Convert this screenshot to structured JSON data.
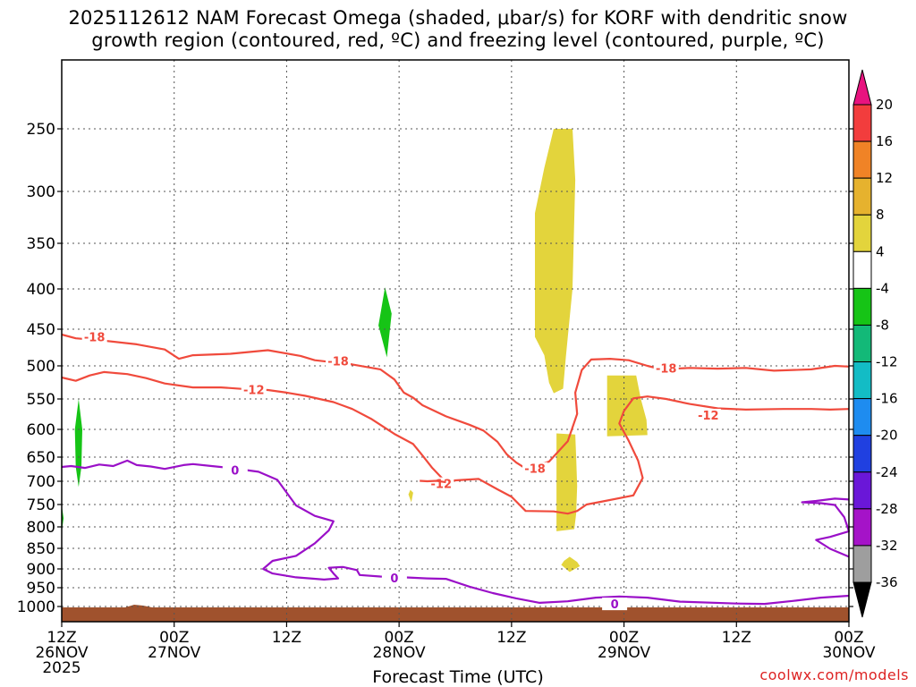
{
  "title_line1": "2025112612 NAM Forecast Omega (shaded, μbar/s) for KORF with dendritic snow",
  "title_line2": "growth region (contoured, red, ºC) and freezing level (contoured, purple, ºC)",
  "credit": "coolwx.com/models",
  "chart_data": {
    "type": "time-height cross section",
    "title": "2025112612 NAM Forecast Omega (shaded, μbar/s) for KORF with dendritic snow growth region (contoured, red, ºC) and freezing level (contoured, purple, ºC)",
    "xlabel": "Forecast Time (UTC)",
    "ylabel": "",
    "x_range_hours": [
      0,
      84
    ],
    "x_ticks": [
      {
        "hour": 0,
        "line1": "12Z",
        "line2": "26NOV",
        "line3": "2025"
      },
      {
        "hour": 12,
        "line1": "00Z",
        "line2": "27NOV",
        "line3": ""
      },
      {
        "hour": 24,
        "line1": "12Z",
        "line2": "",
        "line3": ""
      },
      {
        "hour": 36,
        "line1": "00Z",
        "line2": "28NOV",
        "line3": ""
      },
      {
        "hour": 48,
        "line1": "12Z",
        "line2": "",
        "line3": ""
      },
      {
        "hour": 60,
        "line1": "00Z",
        "line2": "29NOV",
        "line3": ""
      },
      {
        "hour": 72,
        "line1": "12Z",
        "line2": "",
        "line3": ""
      },
      {
        "hour": 84,
        "line1": "00Z",
        "line2": "30NOV",
        "line3": ""
      }
    ],
    "y_range_hpa": [
      200,
      1015
    ],
    "y_ticks": [
      250,
      300,
      350,
      400,
      450,
      500,
      550,
      600,
      650,
      700,
      750,
      800,
      850,
      900,
      950,
      1000
    ],
    "grid": true,
    "colorbar": {
      "units": "μbar/s",
      "labels": [
        "20",
        "16",
        "12",
        "8",
        "4",
        "-4",
        "-8",
        "-12",
        "-16",
        "-20",
        "-24",
        "-28",
        "-32",
        "-36"
      ],
      "colors": [
        "#e8137f",
        "#f23d3d",
        "#f08326",
        "#e6b22e",
        "#e3d43c",
        "#ffffff",
        "#16c416",
        "#13b978",
        "#13bcc5",
        "#1e8cf0",
        "#2040e0",
        "#6a17d8",
        "#a513c8",
        "#9e9e9e",
        "#000000"
      ]
    },
    "contours_temperature": [
      {
        "label": "-18",
        "color": "#f04a3c",
        "label_points": [
          {
            "hour": 3.5,
            "hpa": 460
          },
          {
            "hour": 29.5,
            "hpa": 493
          },
          {
            "hour": 50.5,
            "hpa": 673
          },
          {
            "hour": 64.5,
            "hpa": 503
          }
        ],
        "points": [
          [
            0,
            457
          ],
          [
            1.5,
            462
          ],
          [
            4.5,
            465
          ],
          [
            8,
            470
          ],
          [
            11,
            477
          ],
          [
            12.5,
            490
          ],
          [
            14,
            485
          ],
          [
            18,
            483
          ],
          [
            22,
            478
          ],
          [
            25.5,
            486
          ],
          [
            27,
            492
          ],
          [
            31,
            498
          ],
          [
            34,
            505
          ],
          [
            35.5,
            520
          ],
          [
            36.5,
            540
          ],
          [
            37.5,
            548
          ],
          [
            38.5,
            560
          ],
          [
            41,
            578
          ],
          [
            43.5,
            592
          ],
          [
            45,
            602
          ],
          [
            46.5,
            622
          ],
          [
            47.5,
            645
          ],
          [
            48.5,
            661
          ],
          [
            49.5,
            673
          ],
          [
            52,
            659
          ],
          [
            54,
            621
          ],
          [
            55,
            574
          ],
          [
            54.8,
            540
          ],
          [
            55.5,
            506
          ],
          [
            56.5,
            491
          ],
          [
            58.5,
            490
          ],
          [
            60.5,
            492
          ],
          [
            62.5,
            500
          ],
          [
            64,
            505
          ],
          [
            67,
            503
          ],
          [
            70,
            504
          ],
          [
            73,
            503
          ],
          [
            76,
            507
          ],
          [
            80,
            505
          ],
          [
            82.5,
            500
          ],
          [
            84,
            501
          ]
        ]
      },
      {
        "label": "-12",
        "color": "#f04a3c",
        "label_points": [
          {
            "hour": 20.5,
            "hpa": 535
          },
          {
            "hour": 40.5,
            "hpa": 705
          },
          {
            "hour": 69,
            "hpa": 576
          }
        ],
        "points": [
          [
            0,
            517
          ],
          [
            1.5,
            522
          ],
          [
            3,
            514
          ],
          [
            4.5,
            509
          ],
          [
            7,
            512
          ],
          [
            9,
            518
          ],
          [
            11,
            526
          ],
          [
            14,
            532
          ],
          [
            17,
            532
          ],
          [
            20,
            535
          ],
          [
            22,
            536
          ],
          [
            24,
            540
          ],
          [
            26,
            545
          ],
          [
            29,
            555
          ],
          [
            31,
            566
          ],
          [
            33,
            582
          ],
          [
            35.5,
            608
          ],
          [
            37.5,
            626
          ],
          [
            38.5,
            647
          ],
          [
            39.5,
            671
          ],
          [
            41,
            702
          ],
          [
            42,
            698
          ],
          [
            44.5,
            695
          ],
          [
            46.5,
            717
          ],
          [
            48,
            733
          ],
          [
            49.5,
            764
          ],
          [
            52.5,
            765
          ],
          [
            54,
            770
          ],
          [
            55,
            764
          ],
          [
            56,
            750
          ],
          [
            57.5,
            744
          ],
          [
            61,
            730
          ],
          [
            62,
            693
          ],
          [
            61.5,
            657
          ],
          [
            60.5,
            620
          ],
          [
            59.5,
            590
          ],
          [
            60,
            569
          ],
          [
            61,
            549
          ],
          [
            62.5,
            546
          ],
          [
            64.5,
            550
          ],
          [
            67,
            558
          ],
          [
            70,
            565
          ],
          [
            73,
            567
          ],
          [
            77,
            566
          ],
          [
            80,
            566
          ],
          [
            82,
            567
          ],
          [
            84,
            566
          ]
        ]
      },
      {
        "label": "-12",
        "color": "#f04a3c",
        "label_points": [],
        "points": [
          [
            38.2,
            699
          ],
          [
            39,
            700
          ],
          [
            40,
            699
          ],
          [
            41,
            702
          ]
        ]
      }
    ],
    "contours_freezing": [
      {
        "label": "0",
        "color": "#9a10c8",
        "label_points": [
          {
            "hour": 18.5,
            "hpa": 676
          },
          {
            "hour": 35.5,
            "hpa": 924
          },
          {
            "hour": 59,
            "hpa": 993
          }
        ],
        "points": [
          [
            0,
            670
          ],
          [
            1,
            668
          ],
          [
            2.5,
            672
          ],
          [
            4,
            665
          ],
          [
            5.5,
            668
          ],
          [
            7,
            657
          ],
          [
            8,
            666
          ],
          [
            9.5,
            669
          ],
          [
            11,
            674
          ],
          [
            13,
            666
          ],
          [
            14,
            664
          ],
          [
            16,
            668
          ],
          [
            18,
            672
          ],
          [
            21,
            680
          ],
          [
            23,
            697
          ],
          [
            25,
            752
          ],
          [
            27,
            775
          ],
          [
            29,
            787
          ],
          [
            28.5,
            808
          ],
          [
            27,
            838
          ],
          [
            25,
            868
          ],
          [
            22.5,
            880
          ],
          [
            21.5,
            900
          ],
          [
            22.5,
            912
          ],
          [
            25,
            922
          ],
          [
            28,
            928
          ],
          [
            29.5,
            925
          ],
          [
            29,
            912
          ],
          [
            28.5,
            897
          ],
          [
            30,
            895
          ],
          [
            31.5,
            903
          ],
          [
            31.8,
            916
          ],
          [
            34,
            920
          ],
          [
            36.5,
            922
          ],
          [
            39,
            925
          ],
          [
            41,
            926
          ],
          [
            43.5,
            947
          ],
          [
            46,
            964
          ],
          [
            48.5,
            978
          ],
          [
            51,
            990
          ],
          [
            54,
            986
          ],
          [
            57,
            976
          ],
          [
            59.5,
            973
          ],
          [
            62.5,
            976
          ],
          [
            66,
            987
          ],
          [
            72,
            992
          ],
          [
            75,
            993
          ],
          [
            78,
            985
          ],
          [
            81,
            976
          ],
          [
            84,
            971
          ]
        ]
      },
      {
        "label": "",
        "color": "#9a10c8",
        "label_points": [],
        "points": [
          [
            84,
            739
          ],
          [
            82.5,
            737
          ],
          [
            80.5,
            742
          ],
          [
            79,
            745
          ],
          [
            81,
            747
          ],
          [
            82.5,
            751
          ],
          [
            83.5,
            778
          ],
          [
            84,
            810
          ],
          [
            82,
            823
          ],
          [
            80.5,
            830
          ],
          [
            82,
            851
          ],
          [
            84,
            870
          ]
        ]
      }
    ],
    "omega_regions": [
      {
        "value_range": "4 to 8",
        "color": "#e3d43c",
        "points": [
          [
            52.5,
            250
          ],
          [
            54.5,
            250
          ],
          [
            54.8,
            290
          ],
          [
            54.5,
            400
          ],
          [
            53.8,
            487
          ],
          [
            53.5,
            534
          ],
          [
            52.5,
            541
          ],
          [
            52,
            525
          ],
          [
            51.5,
            485
          ],
          [
            50.5,
            460
          ],
          [
            50.5,
            400
          ],
          [
            50.5,
            320
          ],
          [
            51.5,
            280
          ]
        ]
      },
      {
        "value_range": "4 to 8",
        "color": "#e3d43c",
        "points": [
          [
            52.8,
            607
          ],
          [
            54.8,
            609
          ],
          [
            54.9,
            650
          ],
          [
            55,
            710
          ],
          [
            54.9,
            770
          ],
          [
            54.7,
            805
          ],
          [
            52.8,
            810
          ],
          [
            52.8,
            740
          ],
          [
            52.8,
            660
          ]
        ]
      },
      {
        "value_range": "4 to 8",
        "color": "#e3d43c",
        "points": [
          [
            58.2,
            514
          ],
          [
            61.3,
            514
          ],
          [
            61.8,
            550
          ],
          [
            62.4,
            584
          ],
          [
            62.5,
            610
          ],
          [
            58.2,
            612
          ]
        ]
      },
      {
        "value_range": "4 to 8",
        "color": "#e3d43c",
        "points": [
          [
            53.6,
            880
          ],
          [
            54.2,
            870
          ],
          [
            55,
            883
          ],
          [
            55.3,
            893
          ],
          [
            54.2,
            908
          ],
          [
            53.3,
            890
          ]
        ]
      },
      {
        "value_range": "4 to 8",
        "color": "#e3d43c",
        "points": [
          [
            37.2,
            718
          ],
          [
            37.5,
            724
          ],
          [
            37.3,
            745
          ],
          [
            37.0,
            728
          ]
        ]
      },
      {
        "value_range": "-4 to -8",
        "color": "#16c416",
        "points": [
          [
            1.8,
            550
          ],
          [
            2.2,
            600
          ],
          [
            2.1,
            670
          ],
          [
            1.8,
            712
          ],
          [
            1.5,
            670
          ],
          [
            1.4,
            600
          ]
        ]
      },
      {
        "value_range": "-4 to -8",
        "color": "#16c416",
        "points": [
          [
            34.5,
            398
          ],
          [
            35.2,
            430
          ],
          [
            34.7,
            488
          ],
          [
            33.8,
            445
          ]
        ]
      },
      {
        "value_range": "-4 to -8",
        "color": "#16c416",
        "points": [
          [
            0,
            752
          ],
          [
            0.2,
            780
          ],
          [
            0,
            812
          ]
        ]
      }
    ],
    "terrain": {
      "color": "#a0522d",
      "surface_hpa": 1005
    }
  }
}
